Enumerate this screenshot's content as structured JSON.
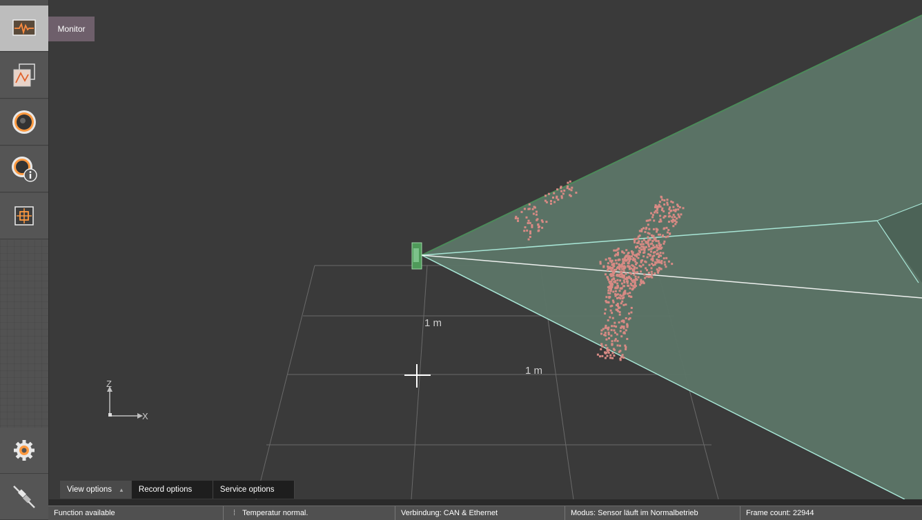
{
  "sidebar": {
    "items": [
      {
        "name": "monitor",
        "icon": "monitor-icon",
        "active": true
      },
      {
        "name": "chart",
        "icon": "chart-icon"
      },
      {
        "name": "sensor",
        "icon": "sensor-icon"
      },
      {
        "name": "sensor-info",
        "icon": "sensor-info-icon"
      },
      {
        "name": "calibration",
        "icon": "calibration-target-icon"
      },
      {
        "name": "settings",
        "icon": "gear-icon"
      },
      {
        "name": "connection",
        "icon": "plug-icon"
      }
    ],
    "tooltip": "Monitor"
  },
  "viewport": {
    "grid_label_y": "1 m",
    "grid_label_x": "1 m",
    "axis_z_label": "Z",
    "axis_x_label": "X",
    "colors": {
      "background": "#3a3a3a",
      "field_of_view_fill": "#5c7567",
      "field_of_view_edge": "#a8e6d6",
      "point_cloud": "#d78a84",
      "sensor": "#4f9a5a"
    }
  },
  "tabs": [
    {
      "label": "View options",
      "active": true
    },
    {
      "label": "Record options"
    },
    {
      "label": "Service options"
    }
  ],
  "status": {
    "function": "Function available",
    "temperature": "Temperatur normal.",
    "connection": "Verbindung: CAN & Ethernet",
    "mode": "Modus: Sensor läuft im Normalbetrieb",
    "frame_count": "Frame count: 22944"
  }
}
